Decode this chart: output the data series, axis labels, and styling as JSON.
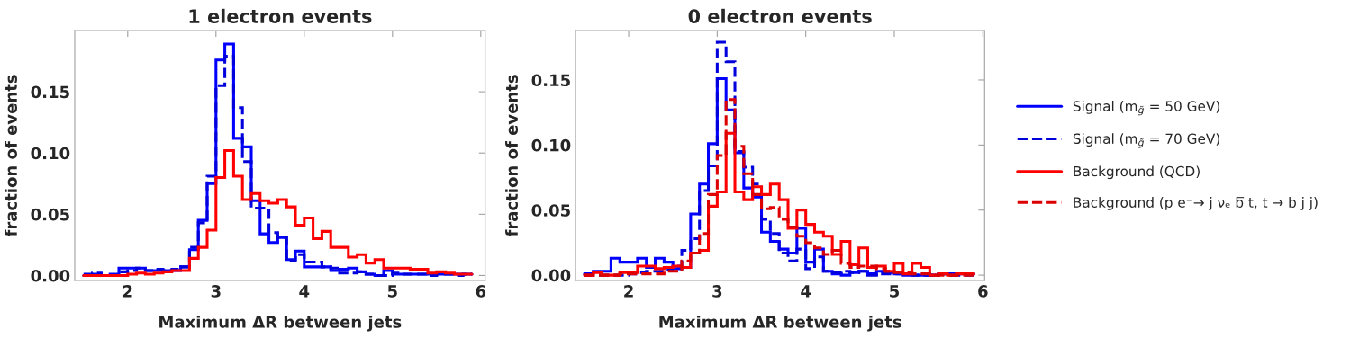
{
  "chart_data": [
    {
      "type": "histogram",
      "title": "1 electron events",
      "xlabel": "Maximum ΔR between jets",
      "ylabel": "fraction of events",
      "bins": [
        1.5,
        1.6,
        1.7,
        1.8,
        1.9,
        2.0,
        2.1,
        2.2,
        2.3,
        2.4,
        2.5,
        2.6,
        2.7,
        2.8,
        2.9,
        3.0,
        3.1,
        3.2,
        3.3,
        3.4,
        3.5,
        3.6,
        3.7,
        3.8,
        3.9,
        4.0,
        4.1,
        4.2,
        4.3,
        4.4,
        4.5,
        4.6,
        4.7,
        4.8,
        4.9,
        5.0,
        5.1,
        5.2,
        5.3,
        5.4,
        5.5,
        5.6,
        5.7,
        5.8,
        5.9
      ],
      "xlim": [
        1.4,
        6.05
      ],
      "xticks": [
        2,
        3,
        4,
        5,
        6
      ],
      "ylim": [
        -0.004,
        0.2
      ],
      "yticks": [
        {
          "value": 0,
          "label": "0.00"
        },
        {
          "value": 0.05,
          "label": "0.05"
        },
        {
          "value": 0.1,
          "label": "0.10"
        },
        {
          "value": 0.15,
          "label": "0.15"
        }
      ],
      "grid": false,
      "legend": false,
      "series": [
        {
          "color": "#0000ff",
          "line_style": "solid",
          "values": [
            0.0,
            0.001,
            0.0,
            0.001,
            0.006,
            0.006,
            0.006,
            0.004,
            0.004,
            0.004,
            0.004,
            0.007,
            0.021,
            0.045,
            0.075,
            0.176,
            0.189,
            0.112,
            0.105,
            0.061,
            0.034,
            0.027,
            0.031,
            0.013,
            0.02,
            0.007,
            0.007,
            0.007,
            0.004,
            0.005,
            0.006,
            0.003,
            0.001,
            0.0,
            0.004,
            0.001,
            0.001,
            0.001,
            0.001,
            0.001,
            0.001,
            0.001,
            0.001,
            0.001
          ]
        },
        {
          "color": "#0000dd",
          "line_style": "dashed",
          "values": [
            0.001,
            0.002,
            0.0,
            0.0,
            0.003,
            0.004,
            0.006,
            0.004,
            0.005,
            0.004,
            0.005,
            0.007,
            0.023,
            0.043,
            0.081,
            0.155,
            0.179,
            0.137,
            0.093,
            0.055,
            0.055,
            0.035,
            0.031,
            0.012,
            0.017,
            0.011,
            0.011,
            0.007,
            0.006,
            0.002,
            0.002,
            0.003,
            0.001,
            0.0,
            0.0,
            0.002,
            0.001,
            0.001,
            0.001,
            0.0,
            0.001,
            0.001,
            0.0,
            0.001
          ]
        },
        {
          "color": "#ff0000",
          "line_style": "solid",
          "values": [
            0.0,
            0.0,
            0.0,
            0.0,
            0.0,
            0.001,
            0.002,
            0.001,
            0.002,
            0.003,
            0.004,
            0.004,
            0.014,
            0.023,
            0.037,
            0.08,
            0.102,
            0.081,
            0.062,
            0.067,
            0.061,
            0.059,
            0.062,
            0.056,
            0.041,
            0.047,
            0.03,
            0.036,
            0.023,
            0.023,
            0.015,
            0.017,
            0.01,
            0.013,
            0.006,
            0.006,
            0.006,
            0.005,
            0.005,
            0.002,
            0.003,
            0.002,
            0.001,
            0.001
          ]
        }
      ]
    },
    {
      "type": "histogram",
      "title": "0 electron events",
      "xlabel": "Maximum ΔR between jets",
      "ylabel": "fraction of events",
      "bins": [
        1.5,
        1.6,
        1.7,
        1.8,
        1.9,
        2.0,
        2.1,
        2.2,
        2.3,
        2.4,
        2.5,
        2.6,
        2.7,
        2.8,
        2.9,
        3.0,
        3.1,
        3.2,
        3.3,
        3.4,
        3.5,
        3.6,
        3.7,
        3.8,
        3.9,
        4.0,
        4.1,
        4.2,
        4.3,
        4.4,
        4.5,
        4.6,
        4.7,
        4.8,
        4.9,
        5.0,
        5.1,
        5.2,
        5.3,
        5.4,
        5.5,
        5.6,
        5.7,
        5.8,
        5.9
      ],
      "xlim": [
        1.4,
        6.02
      ],
      "xticks": [
        2,
        3,
        4,
        5,
        6
      ],
      "ylim": [
        -0.004,
        0.188
      ],
      "yticks": [
        {
          "value": 0,
          "label": "0.00"
        },
        {
          "value": 0.05,
          "label": "0.05"
        },
        {
          "value": 0.1,
          "label": "0.10"
        },
        {
          "value": 0.15,
          "label": "0.15"
        }
      ],
      "grid": false,
      "legend": "right",
      "series": [
        {
          "name": "Signal (m$_{g̃}$ = 50 GeV)",
          "color": "#0000ff",
          "line_style": "solid",
          "values": [
            0.001,
            0.003,
            0.003,
            0.013,
            0.01,
            0.01,
            0.013,
            0.006,
            0.013,
            0.01,
            0.005,
            0.006,
            0.047,
            0.07,
            0.101,
            0.151,
            0.127,
            0.094,
            0.067,
            0.06,
            0.033,
            0.026,
            0.02,
            0.017,
            0.036,
            0.01,
            0.02,
            0.003,
            0.001,
            0.0,
            0.002,
            0.003,
            0.001,
            0.003,
            0.002,
            0.001,
            0.0,
            0.0,
            0.0,
            0.0,
            0.001,
            0.001,
            0.001,
            0.001
          ]
        },
        {
          "name": "Signal (m$_{g̃}$ = 70 GeV)",
          "color": "#0000dd",
          "line_style": "dashed",
          "values": [
            0.0,
            0.0,
            0.0,
            0.0,
            0.0,
            0.001,
            0.002,
            0.003,
            0.003,
            0.004,
            0.007,
            0.019,
            0.028,
            0.065,
            0.084,
            0.179,
            0.164,
            0.095,
            0.083,
            0.07,
            0.043,
            0.032,
            0.017,
            0.011,
            0.02,
            0.005,
            0.014,
            0.003,
            0.002,
            0.003,
            0.002,
            0.003,
            0.0,
            0.001,
            0.001,
            0.001,
            0.001,
            0.0,
            0.0,
            0.0,
            0.001,
            0.0,
            0.0,
            0.0
          ]
        },
        {
          "name": "Background (QCD)",
          "color": "#ff0000",
          "line_style": "solid",
          "values": [
            0.0,
            0.002,
            0.0,
            0.0,
            0.002,
            0.002,
            0.007,
            0.007,
            0.005,
            0.006,
            0.007,
            0.006,
            0.017,
            0.019,
            0.053,
            0.064,
            0.109,
            0.064,
            0.058,
            0.068,
            0.062,
            0.07,
            0.058,
            0.036,
            0.05,
            0.039,
            0.033,
            0.03,
            0.016,
            0.026,
            0.008,
            0.021,
            0.006,
            0.007,
            0.003,
            0.009,
            0.001,
            0.009,
            0.006,
            0.0,
            0.001,
            0.0,
            0.001,
            0.001
          ]
        },
        {
          "name": "Background (p e⁻→ j νₑ b̅ t, t → b j j)",
          "color": "#dd0000",
          "line_style": "dashed",
          "values": [
            0.0,
            0.0,
            0.0,
            0.0,
            0.001,
            0.001,
            0.001,
            0.001,
            0.001,
            0.003,
            0.003,
            0.011,
            0.017,
            0.032,
            0.062,
            0.092,
            0.135,
            0.099,
            0.078,
            0.062,
            0.051,
            0.052,
            0.043,
            0.037,
            0.03,
            0.025,
            0.021,
            0.016,
            0.019,
            0.009,
            0.006,
            0.007,
            0.007,
            0.005,
            0.003,
            0.002,
            0.002,
            0.001,
            0.001,
            0.0,
            0.0,
            0.0,
            0.0,
            0.0
          ]
        }
      ]
    }
  ]
}
